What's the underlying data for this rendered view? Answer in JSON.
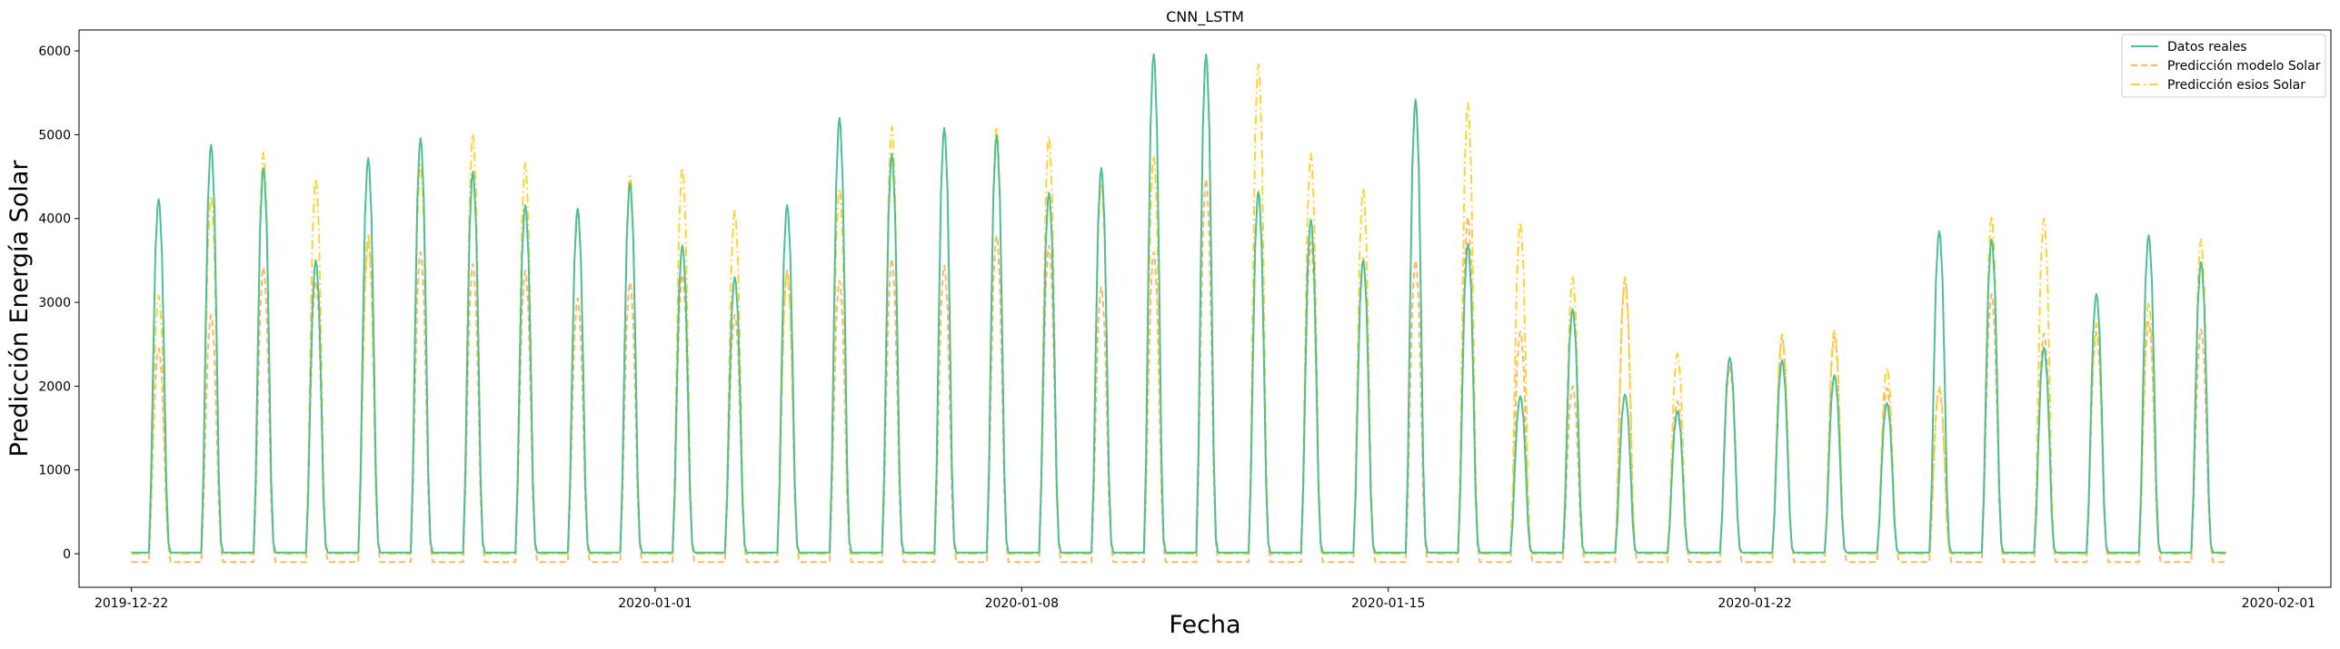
{
  "chart_data": {
    "type": "line",
    "title": "CNN_LSTM",
    "xlabel": "Fecha",
    "ylabel": "Predicción Energía Solar",
    "xlim": [
      "2019-12-21T00:00",
      "2020-02-02T00:00"
    ],
    "ylim": [
      -400,
      6250
    ],
    "x_ticks": [
      "2019-12-22",
      "2020-01-01",
      "2020-01-08",
      "2020-01-15",
      "2020-01-22",
      "2020-02-01"
    ],
    "y_ticks": [
      0,
      1000,
      2000,
      3000,
      4000,
      5000,
      6000
    ],
    "grid": false,
    "legend_position": "top-right",
    "day_start": "2019-12-22",
    "series": [
      {
        "name": "Datos reales",
        "style": "solid",
        "color": "#4cbf94",
        "peaks": [
          4230,
          4880,
          4600,
          3500,
          4720,
          4960,
          4560,
          4160,
          4120,
          4420,
          3680,
          3300,
          4160,
          5200,
          4770,
          5080,
          4990,
          4310,
          4600,
          5960,
          5960,
          4320,
          3990,
          3500,
          5420,
          3700,
          1880,
          2920,
          1900,
          1700,
          2340,
          2310,
          2130,
          1800,
          3850,
          3750,
          2460,
          3100,
          3800,
          3480
        ]
      },
      {
        "name": "Predicción modelo Solar",
        "style": "dashed",
        "color": "#f9b86a",
        "peaks": [
          2450,
          2850,
          3420,
          3250,
          3720,
          3600,
          3460,
          3380,
          3050,
          3240,
          3330,
          2850,
          3380,
          3260,
          3520,
          3440,
          3800,
          3680,
          3180,
          3600,
          4470,
          4300,
          3720,
          3530,
          3500,
          4020,
          2650,
          2000,
          3280,
          1820,
          2230,
          2560,
          2590,
          1980,
          1960,
          3100,
          2630,
          2630,
          2770,
          2680
        ]
      },
      {
        "name": "Predicción esios Solar",
        "style": "dashdot",
        "color": "#ffd233",
        "peaks": [
          3080,
          4270,
          4790,
          4480,
          3820,
          4640,
          5010,
          4660,
          4080,
          4510,
          4610,
          4090,
          3350,
          4360,
          5100,
          5070,
          5100,
          4980,
          4420,
          4750,
          5960,
          5840,
          4780,
          4360,
          5380,
          5380,
          3960,
          3300,
          3300,
          2390,
          2320,
          2620,
          2670,
          2220,
          1990,
          4030,
          4000,
          2750,
          3000,
          3750
        ]
      }
    ]
  }
}
